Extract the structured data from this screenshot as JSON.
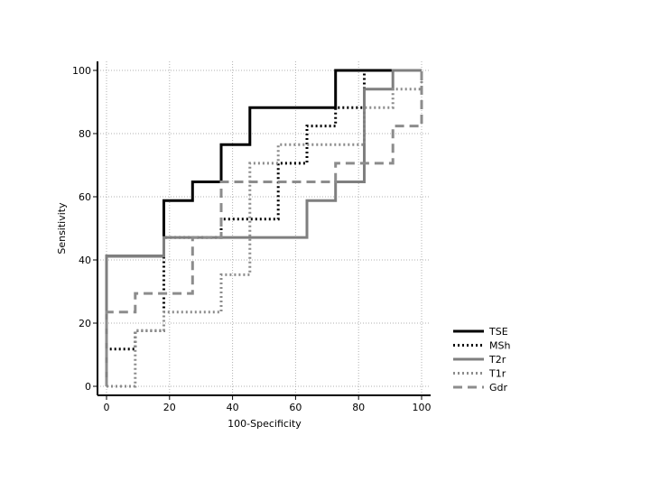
{
  "chart_data": {
    "type": "line",
    "title": "",
    "xlabel": "100-Specificity",
    "ylabel": "Sensitivity",
    "xlim": [
      0,
      100
    ],
    "ylim": [
      0,
      100
    ],
    "xticks": [
      0,
      20,
      40,
      60,
      80,
      100
    ],
    "yticks": [
      0,
      20,
      40,
      60,
      80,
      100
    ],
    "grid": true,
    "legend_position": "bottom-right",
    "series": [
      {
        "name": "TSE",
        "color": "#000000",
        "style": "solid",
        "points": [
          [
            0,
            0
          ],
          [
            0,
            41.2
          ],
          [
            18.2,
            41.2
          ],
          [
            18.2,
            58.8
          ],
          [
            27.3,
            58.8
          ],
          [
            27.3,
            64.7
          ],
          [
            36.4,
            64.7
          ],
          [
            36.4,
            76.5
          ],
          [
            45.5,
            76.5
          ],
          [
            45.5,
            88.2
          ],
          [
            72.7,
            88.2
          ],
          [
            72.7,
            100
          ],
          [
            100,
            100
          ]
        ]
      },
      {
        "name": "MSh",
        "color": "#000000",
        "style": "dotted",
        "points": [
          [
            0,
            0
          ],
          [
            0,
            11.8
          ],
          [
            9.1,
            11.8
          ],
          [
            9.1,
            17.6
          ],
          [
            18.2,
            17.6
          ],
          [
            18.2,
            47.1
          ],
          [
            36.4,
            47.1
          ],
          [
            36.4,
            52.9
          ],
          [
            54.5,
            52.9
          ],
          [
            54.5,
            70.6
          ],
          [
            63.6,
            70.6
          ],
          [
            63.6,
            82.4
          ],
          [
            72.7,
            82.4
          ],
          [
            72.7,
            88.2
          ],
          [
            81.8,
            88.2
          ],
          [
            81.8,
            100
          ],
          [
            100,
            100
          ]
        ]
      },
      {
        "name": "T2r",
        "color": "#7f7f7f",
        "style": "solid",
        "points": [
          [
            0,
            0
          ],
          [
            0,
            41.2
          ],
          [
            18.2,
            41.2
          ],
          [
            18.2,
            47.1
          ],
          [
            63.6,
            47.1
          ],
          [
            63.6,
            58.8
          ],
          [
            72.7,
            58.8
          ],
          [
            72.7,
            64.7
          ],
          [
            81.8,
            64.7
          ],
          [
            81.8,
            94.1
          ],
          [
            90.9,
            94.1
          ],
          [
            90.9,
            100
          ],
          [
            100,
            100
          ]
        ]
      },
      {
        "name": "T1r",
        "color": "#8c8c8c",
        "style": "dotted",
        "points": [
          [
            0,
            0
          ],
          [
            9.1,
            0
          ],
          [
            9.1,
            17.6
          ],
          [
            18.2,
            17.6
          ],
          [
            18.2,
            23.5
          ],
          [
            36.4,
            23.5
          ],
          [
            36.4,
            35.3
          ],
          [
            45.5,
            35.3
          ],
          [
            45.5,
            70.6
          ],
          [
            54.5,
            70.6
          ],
          [
            54.5,
            76.5
          ],
          [
            81.8,
            76.5
          ],
          [
            81.8,
            88.2
          ],
          [
            90.9,
            88.2
          ],
          [
            90.9,
            94.1
          ],
          [
            100,
            94.1
          ],
          [
            100,
            100
          ]
        ]
      },
      {
        "name": "Gdr",
        "color": "#8c8c8c",
        "style": "dashed",
        "points": [
          [
            0,
            0
          ],
          [
            0,
            23.5
          ],
          [
            9.1,
            23.5
          ],
          [
            9.1,
            29.4
          ],
          [
            27.3,
            29.4
          ],
          [
            27.3,
            47.1
          ],
          [
            36.4,
            47.1
          ],
          [
            36.4,
            64.7
          ],
          [
            72.7,
            64.7
          ],
          [
            72.7,
            70.6
          ],
          [
            90.9,
            70.6
          ],
          [
            90.9,
            82.4
          ],
          [
            100,
            82.4
          ],
          [
            100,
            100
          ]
        ]
      }
    ]
  }
}
